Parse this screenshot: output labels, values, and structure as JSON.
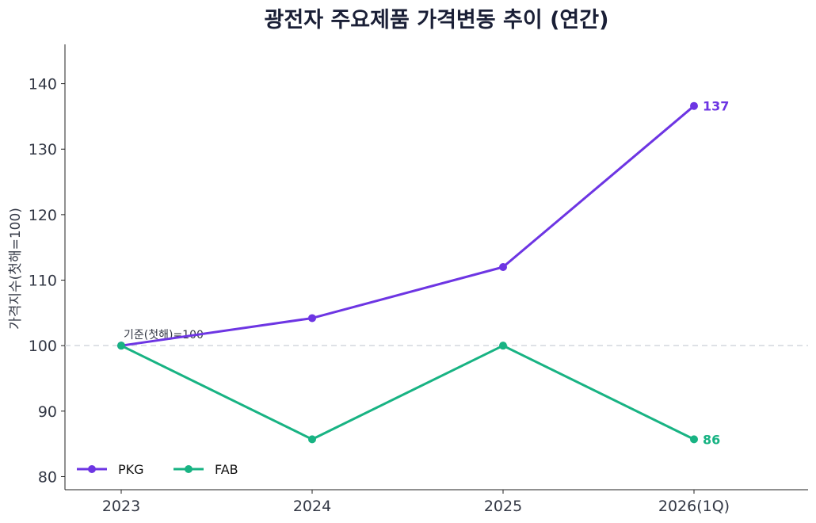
{
  "chart_data": {
    "type": "line",
    "title": "광전자 주요제품 가격변동 추이 (연간)",
    "xlabel": "",
    "ylabel": "가격지수(첫해=100)",
    "categories": [
      "2023",
      "2024",
      "2025",
      "2026(1Q)"
    ],
    "ylim": [
      78,
      146
    ],
    "yticks": [
      80,
      90,
      100,
      110,
      120,
      130,
      140
    ],
    "grid": false,
    "legend_position": "bottom-left",
    "reference_line": {
      "value": 100,
      "label": "기준(첫해)=100"
    },
    "series": [
      {
        "name": "PKG",
        "color": "#6d35e3",
        "values": [
          100,
          104.2,
          112,
          136.6
        ],
        "end_label": "137"
      },
      {
        "name": "FAB",
        "color": "#18b383",
        "values": [
          100,
          85.7,
          100,
          85.7
        ],
        "end_label": "86"
      }
    ]
  }
}
